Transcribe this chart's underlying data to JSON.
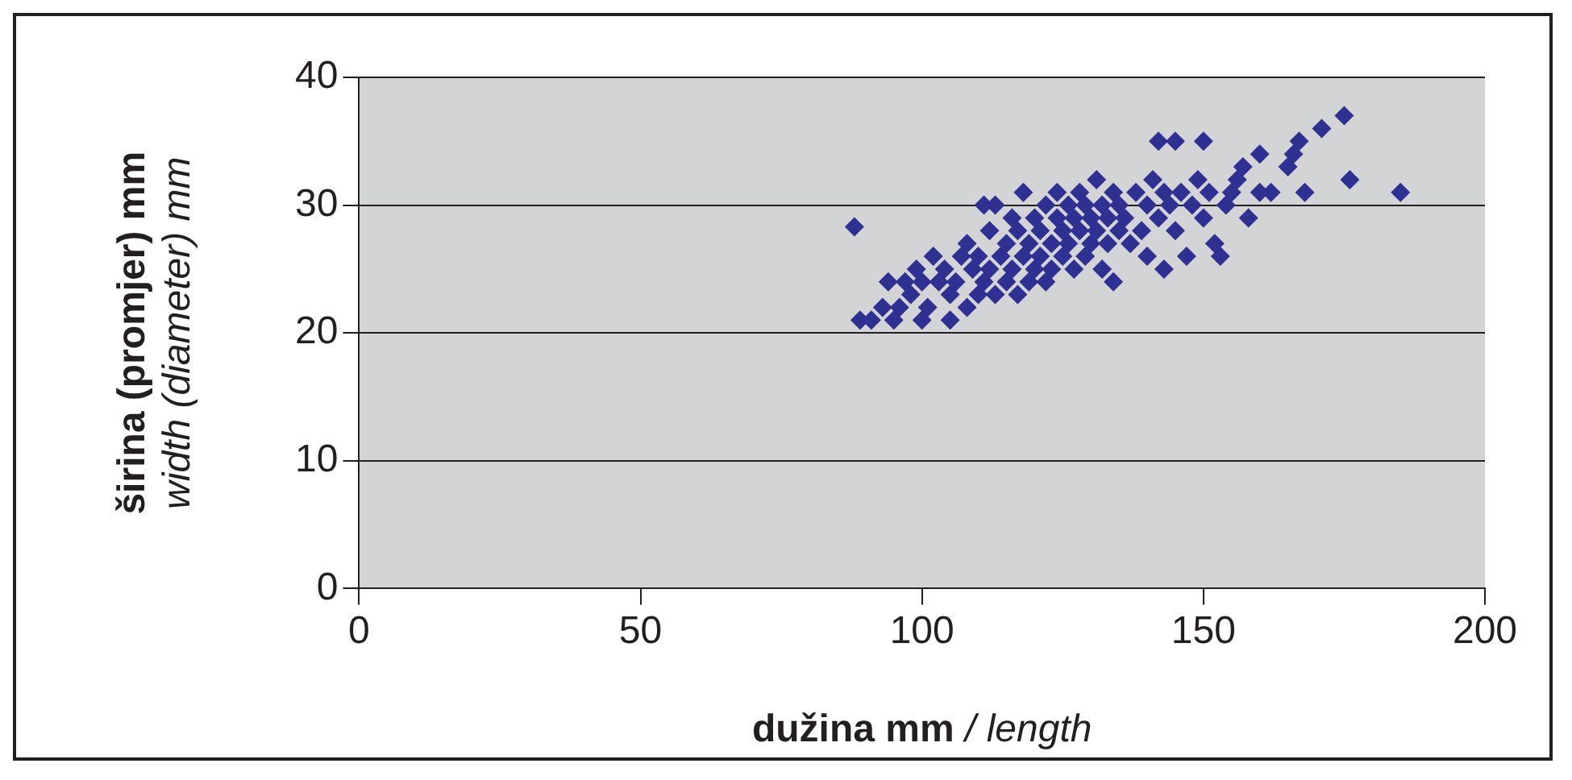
{
  "chart_data": {
    "type": "scatter",
    "xlabel": "dužina mm / length",
    "ylabel": "širina (promjer) mm\nwidth (diameter) mm",
    "xlim": [
      0,
      200
    ],
    "xticks": [
      0,
      50,
      100,
      150,
      200
    ],
    "ylim": [
      0,
      40
    ],
    "yticks": [
      0,
      10,
      20,
      30,
      40
    ],
    "grid": "y",
    "marker": "diamond",
    "legend": false,
    "series": [
      {
        "color": "#2e3191",
        "x": [
          88,
          89,
          91,
          93,
          94,
          95,
          96,
          97,
          98,
          99,
          100,
          100,
          101,
          102,
          103,
          104,
          105,
          105,
          106,
          107,
          108,
          108,
          109,
          110,
          110,
          111,
          111,
          112,
          112,
          113,
          113,
          114,
          115,
          115,
          116,
          116,
          117,
          117,
          118,
          118,
          119,
          119,
          120,
          120,
          121,
          121,
          122,
          122,
          123,
          123,
          124,
          124,
          125,
          125,
          126,
          126,
          127,
          127,
          128,
          128,
          129,
          129,
          130,
          130,
          131,
          131,
          132,
          132,
          133,
          133,
          134,
          134,
          135,
          135,
          136,
          137,
          138,
          139,
          140,
          140,
          141,
          142,
          142,
          143,
          143,
          144,
          145,
          145,
          146,
          147,
          148,
          149,
          150,
          150,
          151,
          152,
          153,
          154,
          155,
          156,
          157,
          158,
          160,
          160,
          162,
          165,
          166,
          167,
          168,
          171,
          175,
          176,
          185
        ],
        "values": [
          28.3,
          21,
          21,
          22,
          24,
          21,
          22,
          24,
          23,
          25,
          21,
          24,
          22,
          26,
          24,
          25,
          21,
          23,
          24,
          26,
          22,
          27,
          25,
          23,
          26,
          30,
          24,
          25,
          28,
          23,
          30,
          26,
          24,
          27,
          25,
          29,
          23,
          28,
          26,
          31,
          24,
          27,
          25,
          29,
          26,
          28,
          24,
          30,
          27,
          25,
          29,
          31,
          26,
          28,
          27,
          30,
          25,
          29,
          28,
          31,
          26,
          30,
          27,
          29,
          28,
          32,
          25,
          30,
          29,
          27,
          31,
          24,
          30,
          28,
          29,
          27,
          31,
          28,
          30,
          26,
          32,
          29,
          35,
          25,
          31,
          30,
          28,
          35,
          31,
          26,
          30,
          32,
          29,
          35,
          31,
          27,
          26,
          30,
          31,
          32,
          33,
          29,
          31,
          34,
          31,
          33,
          34,
          35,
          31,
          36,
          37,
          32,
          31
        ]
      }
    ]
  }
}
